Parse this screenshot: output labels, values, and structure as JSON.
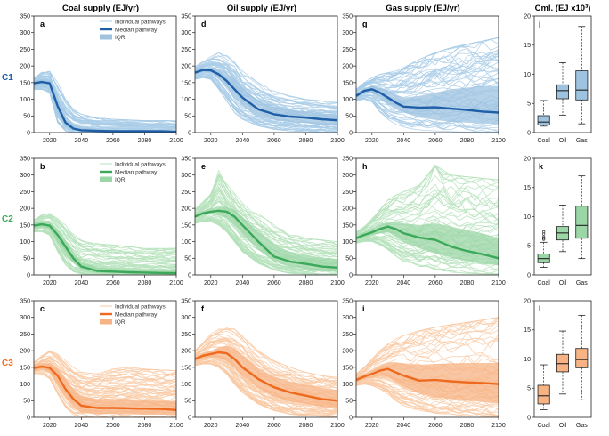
{
  "column_titles": [
    "Coal supply (EJ/yr)",
    "Oil supply (EJ/yr)",
    "Gas supply (EJ/yr)",
    "Cml. (EJ x10³)"
  ],
  "row_labels": [
    "C1",
    "C2",
    "C3"
  ],
  "colors": {
    "C1": {
      "line": "#1f5fa8",
      "band": "#9ec3e0",
      "thin": "#a9cde8"
    },
    "C2": {
      "line": "#3ca85a",
      "band": "#9bd6a6",
      "thin": "#b5e2bb"
    },
    "C3": {
      "line": "#ee6a1e",
      "band": "#f7b384",
      "thin": "#f9caa5"
    }
  },
  "legend": {
    "individual": "Individual pathways",
    "median": "Median pathway",
    "iqr": "IQR"
  },
  "chart_data": [
    {
      "type": "line",
      "panel": "a",
      "title": "Coal supply (EJ/yr)",
      "row": "C1",
      "xlim": [
        2010,
        2100
      ],
      "ylim": [
        0,
        350
      ],
      "x_ticks": [
        2020,
        2040,
        2060,
        2080,
        2100
      ],
      "y_ticks": [
        0,
        50,
        100,
        150,
        200,
        250,
        300,
        350
      ],
      "x": [
        2010,
        2015,
        2020,
        2025,
        2030,
        2035,
        2040,
        2050,
        2060,
        2070,
        2080,
        2090,
        2100
      ],
      "median": [
        148,
        152,
        148,
        80,
        30,
        12,
        7,
        5,
        4,
        4,
        4,
        4,
        3
      ],
      "iqr_low": [
        140,
        144,
        140,
        60,
        18,
        6,
        3,
        2,
        2,
        1,
        1,
        1,
        1
      ],
      "iqr_high": [
        155,
        160,
        158,
        100,
        50,
        25,
        15,
        10,
        8,
        7,
        6,
        6,
        5
      ],
      "env_low": [
        130,
        130,
        120,
        30,
        5,
        0,
        0,
        0,
        0,
        0,
        0,
        0,
        0
      ],
      "env_high": [
        165,
        185,
        190,
        150,
        100,
        70,
        55,
        45,
        40,
        38,
        36,
        36,
        35
      ],
      "legend": [
        "Individual pathways",
        "Median pathway",
        "IQR"
      ]
    },
    {
      "type": "line",
      "panel": "d",
      "title": "Oil supply (EJ/yr)",
      "row": "C1",
      "xlim": [
        2010,
        2100
      ],
      "ylim": [
        0,
        350
      ],
      "x_ticks": [
        2020,
        2040,
        2060,
        2080,
        2100
      ],
      "y_ticks": [
        0,
        50,
        100,
        150,
        200,
        250,
        300,
        350
      ],
      "x": [
        2010,
        2015,
        2020,
        2025,
        2030,
        2035,
        2040,
        2050,
        2060,
        2070,
        2080,
        2090,
        2100
      ],
      "median": [
        180,
        188,
        187,
        175,
        155,
        130,
        105,
        70,
        55,
        48,
        45,
        40,
        37
      ],
      "iqr_low": [
        175,
        182,
        178,
        160,
        135,
        105,
        80,
        50,
        38,
        32,
        28,
        24,
        20
      ],
      "iqr_high": [
        186,
        195,
        197,
        192,
        180,
        160,
        135,
        95,
        78,
        68,
        62,
        58,
        55
      ],
      "env_low": [
        160,
        165,
        160,
        130,
        95,
        60,
        40,
        20,
        10,
        5,
        3,
        2,
        2
      ],
      "env_high": [
        200,
        215,
        230,
        240,
        235,
        215,
        185,
        150,
        125,
        110,
        100,
        95,
        90
      ]
    },
    {
      "type": "line",
      "panel": "g",
      "title": "Gas supply (EJ/yr)",
      "row": "C1",
      "xlim": [
        2010,
        2100
      ],
      "ylim": [
        0,
        350
      ],
      "x_ticks": [
        2020,
        2040,
        2060,
        2080,
        2100
      ],
      "y_ticks": [
        0,
        50,
        100,
        150,
        200,
        250,
        300,
        350
      ],
      "x": [
        2010,
        2015,
        2020,
        2025,
        2030,
        2035,
        2040,
        2050,
        2060,
        2070,
        2080,
        2090,
        2100
      ],
      "median": [
        110,
        125,
        130,
        120,
        105,
        90,
        78,
        75,
        76,
        72,
        68,
        63,
        60
      ],
      "iqr_low": [
        105,
        118,
        120,
        105,
        85,
        70,
        60,
        45,
        38,
        32,
        30,
        27,
        25
      ],
      "iqr_high": [
        118,
        132,
        140,
        135,
        125,
        115,
        105,
        110,
        120,
        130,
        135,
        140,
        140
      ],
      "env_low": [
        95,
        100,
        90,
        60,
        40,
        25,
        15,
        8,
        5,
        3,
        2,
        2,
        2
      ],
      "env_high": [
        130,
        150,
        165,
        175,
        180,
        185,
        195,
        220,
        240,
        255,
        265,
        275,
        285
      ]
    },
    {
      "type": "box",
      "panel": "j",
      "title": "Cml. (EJ x10³)",
      "row": "C1",
      "ylim": [
        0,
        20
      ],
      "y_ticks": [
        0,
        5,
        10,
        15,
        20
      ],
      "categories": [
        "Coal",
        "Oil",
        "Gas"
      ],
      "boxes": [
        {
          "min": 1.1,
          "q1": 1.3,
          "median": 1.8,
          "q3": 2.9,
          "max": 5.5,
          "outliers": []
        },
        {
          "min": 3.0,
          "q1": 5.8,
          "median": 7.2,
          "q3": 8.2,
          "max": 12.0,
          "outliers": []
        },
        {
          "min": 1.5,
          "q1": 5.6,
          "median": 7.3,
          "q3": 10.6,
          "max": 18.2,
          "outliers": []
        }
      ]
    },
    {
      "type": "line",
      "panel": "b",
      "title": "Coal supply (EJ/yr)",
      "row": "C2",
      "xlim": [
        2010,
        2100
      ],
      "ylim": [
        0,
        350
      ],
      "x_ticks": [
        2020,
        2040,
        2060,
        2080,
        2100
      ],
      "y_ticks": [
        0,
        50,
        100,
        150,
        200,
        250,
        300,
        350
      ],
      "x": [
        2010,
        2015,
        2020,
        2025,
        2030,
        2035,
        2040,
        2050,
        2060,
        2070,
        2080,
        2090,
        2100
      ],
      "median": [
        148,
        152,
        148,
        120,
        85,
        50,
        25,
        12,
        10,
        8,
        7,
        6,
        5
      ],
      "iqr_low": [
        140,
        145,
        138,
        100,
        65,
        35,
        15,
        6,
        4,
        3,
        3,
        2,
        2
      ],
      "iqr_high": [
        155,
        160,
        158,
        135,
        105,
        70,
        40,
        22,
        18,
        15,
        13,
        12,
        12
      ],
      "env_low": [
        130,
        130,
        120,
        70,
        30,
        10,
        3,
        0,
        0,
        0,
        0,
        0,
        0
      ],
      "env_high": [
        165,
        180,
        185,
        170,
        150,
        125,
        105,
        95,
        90,
        85,
        80,
        80,
        80
      ],
      "legend": [
        "Individual pathways",
        "Median pathway",
        "IQR"
      ]
    },
    {
      "type": "line",
      "panel": "e",
      "title": "Oil supply (EJ/yr)",
      "row": "C2",
      "xlim": [
        2010,
        2100
      ],
      "ylim": [
        0,
        350
      ],
      "x_ticks": [
        2020,
        2040,
        2060,
        2080,
        2100
      ],
      "y_ticks": [
        0,
        50,
        100,
        150,
        200,
        250,
        300,
        350
      ],
      "x": [
        2010,
        2015,
        2020,
        2025,
        2030,
        2035,
        2040,
        2050,
        2060,
        2070,
        2080,
        2090,
        2100
      ],
      "median": [
        175,
        185,
        190,
        193,
        190,
        175,
        150,
        100,
        55,
        40,
        33,
        25,
        22
      ],
      "iqr_low": [
        170,
        178,
        182,
        180,
        170,
        150,
        120,
        75,
        40,
        25,
        18,
        12,
        10
      ],
      "iqr_high": [
        182,
        192,
        200,
        205,
        205,
        195,
        175,
        130,
        90,
        70,
        60,
        52,
        48
      ],
      "env_low": [
        155,
        160,
        160,
        150,
        130,
        100,
        70,
        35,
        15,
        5,
        3,
        2,
        2
      ],
      "env_high": [
        200,
        220,
        250,
        320,
        275,
        245,
        220,
        185,
        150,
        125,
        110,
        105,
        100
      ]
    },
    {
      "type": "line",
      "panel": "h",
      "title": "Gas supply (EJ/yr)",
      "row": "C2",
      "xlim": [
        2010,
        2100
      ],
      "ylim": [
        0,
        350
      ],
      "x_ticks": [
        2020,
        2040,
        2060,
        2080,
        2100
      ],
      "y_ticks": [
        0,
        50,
        100,
        150,
        200,
        250,
        300,
        350
      ],
      "x": [
        2010,
        2015,
        2020,
        2025,
        2030,
        2035,
        2040,
        2050,
        2060,
        2070,
        2080,
        2090,
        2100
      ],
      "median": [
        110,
        120,
        128,
        138,
        145,
        138,
        125,
        112,
        105,
        85,
        72,
        62,
        50
      ],
      "iqr_low": [
        105,
        114,
        120,
        125,
        128,
        115,
        98,
        80,
        65,
        52,
        42,
        35,
        28
      ],
      "iqr_high": [
        116,
        128,
        138,
        150,
        160,
        160,
        155,
        150,
        155,
        145,
        135,
        125,
        110
      ],
      "env_low": [
        95,
        100,
        100,
        90,
        75,
        55,
        40,
        25,
        15,
        8,
        5,
        3,
        2
      ],
      "env_high": [
        130,
        145,
        170,
        200,
        225,
        240,
        250,
        270,
        330,
        300,
        295,
        290,
        285
      ]
    },
    {
      "type": "box",
      "panel": "k",
      "title": "Cml. (EJ x10³)",
      "row": "C2",
      "ylim": [
        0,
        20
      ],
      "y_ticks": [
        0,
        5,
        10,
        15,
        20
      ],
      "categories": [
        "Coal",
        "Oil",
        "Gas"
      ],
      "boxes": [
        {
          "min": 1.3,
          "q1": 2.1,
          "median": 2.8,
          "q3": 3.6,
          "max": 5.6,
          "outliers": [
            6.1,
            6.3,
            6.5,
            7.0,
            7.4
          ]
        },
        {
          "min": 4.0,
          "q1": 6.0,
          "median": 7.2,
          "q3": 8.3,
          "max": 12.0,
          "outliers": []
        },
        {
          "min": 2.8,
          "q1": 6.3,
          "median": 8.5,
          "q3": 11.8,
          "max": 17.0,
          "outliers": []
        }
      ]
    },
    {
      "type": "line",
      "panel": "c",
      "title": "Coal supply (EJ/yr)",
      "row": "C3",
      "xlim": [
        2010,
        2100
      ],
      "ylim": [
        0,
        350
      ],
      "x_ticks": [
        2020,
        2040,
        2060,
        2080,
        2100
      ],
      "y_ticks": [
        0,
        50,
        100,
        150,
        200,
        250,
        300,
        350
      ],
      "x": [
        2010,
        2015,
        2020,
        2025,
        2030,
        2035,
        2040,
        2050,
        2060,
        2070,
        2080,
        2090,
        2100
      ],
      "median": [
        148,
        152,
        148,
        125,
        85,
        55,
        35,
        28,
        28,
        27,
        26,
        25,
        22
      ],
      "iqr_low": [
        140,
        145,
        135,
        100,
        60,
        30,
        15,
        10,
        10,
        9,
        8,
        8,
        8
      ],
      "iqr_high": [
        156,
        162,
        162,
        145,
        115,
        85,
        65,
        55,
        55,
        55,
        52,
        50,
        48
      ],
      "env_low": [
        130,
        130,
        115,
        70,
        30,
        8,
        2,
        0,
        0,
        0,
        0,
        0,
        0
      ],
      "env_high": [
        165,
        185,
        200,
        190,
        170,
        150,
        135,
        130,
        145,
        150,
        145,
        142,
        140
      ],
      "legend": [
        "Individual pathways",
        "Median pathway",
        "IQR"
      ]
    },
    {
      "type": "line",
      "panel": "f",
      "title": "Oil supply (EJ/yr)",
      "row": "C3",
      "xlim": [
        2010,
        2100
      ],
      "ylim": [
        0,
        350
      ],
      "x_ticks": [
        2020,
        2040,
        2060,
        2080,
        2100
      ],
      "y_ticks": [
        0,
        50,
        100,
        150,
        200,
        250,
        300,
        350
      ],
      "x": [
        2010,
        2015,
        2020,
        2025,
        2030,
        2035,
        2040,
        2050,
        2060,
        2070,
        2080,
        2090,
        2100
      ],
      "median": [
        175,
        185,
        190,
        195,
        192,
        175,
        150,
        115,
        90,
        75,
        65,
        55,
        50
      ],
      "iqr_low": [
        170,
        178,
        180,
        180,
        170,
        150,
        125,
        88,
        62,
        48,
        40,
        32,
        28
      ],
      "iqr_high": [
        182,
        193,
        200,
        210,
        215,
        205,
        185,
        148,
        122,
        108,
        98,
        88,
        82
      ],
      "env_low": [
        155,
        160,
        160,
        150,
        130,
        100,
        75,
        40,
        20,
        10,
        5,
        3,
        2
      ],
      "env_high": [
        200,
        225,
        250,
        265,
        275,
        265,
        245,
        200,
        170,
        150,
        135,
        125,
        120
      ]
    },
    {
      "type": "line",
      "panel": "i",
      "title": "Gas supply (EJ/yr)",
      "row": "C3",
      "xlim": [
        2010,
        2100
      ],
      "ylim": [
        0,
        350
      ],
      "x_ticks": [
        2020,
        2040,
        2060,
        2080,
        2100
      ],
      "y_ticks": [
        0,
        50,
        100,
        150,
        200,
        250,
        300,
        350
      ],
      "x": [
        2010,
        2015,
        2020,
        2025,
        2030,
        2035,
        2040,
        2050,
        2060,
        2070,
        2080,
        2090,
        2100
      ],
      "median": [
        112,
        122,
        130,
        140,
        145,
        135,
        125,
        110,
        112,
        108,
        105,
        103,
        100
      ],
      "iqr_low": [
        106,
        115,
        120,
        125,
        122,
        108,
        92,
        70,
        60,
        55,
        50,
        46,
        42
      ],
      "iqr_high": [
        118,
        130,
        140,
        155,
        165,
        165,
        162,
        158,
        160,
        162,
        163,
        163,
        163
      ],
      "env_low": [
        95,
        100,
        95,
        85,
        70,
        50,
        35,
        20,
        12,
        8,
        5,
        3,
        2
      ],
      "env_high": [
        130,
        150,
        175,
        200,
        220,
        235,
        245,
        260,
        270,
        278,
        285,
        292,
        300
      ]
    },
    {
      "type": "box",
      "panel": "l",
      "title": "Cml. (EJ x10³)",
      "row": "C3",
      "ylim": [
        0,
        20
      ],
      "y_ticks": [
        0,
        5,
        10,
        15,
        20
      ],
      "categories": [
        "Coal",
        "Oil",
        "Gas"
      ],
      "boxes": [
        {
          "min": 1.3,
          "q1": 2.3,
          "median": 3.7,
          "q3": 5.5,
          "max": 9.0,
          "outliers": []
        },
        {
          "min": 4.0,
          "q1": 7.8,
          "median": 9.2,
          "q3": 10.8,
          "max": 14.8,
          "outliers": []
        },
        {
          "min": 3.0,
          "q1": 8.5,
          "median": 9.9,
          "q3": 11.8,
          "max": 17.5,
          "outliers": []
        }
      ]
    }
  ]
}
